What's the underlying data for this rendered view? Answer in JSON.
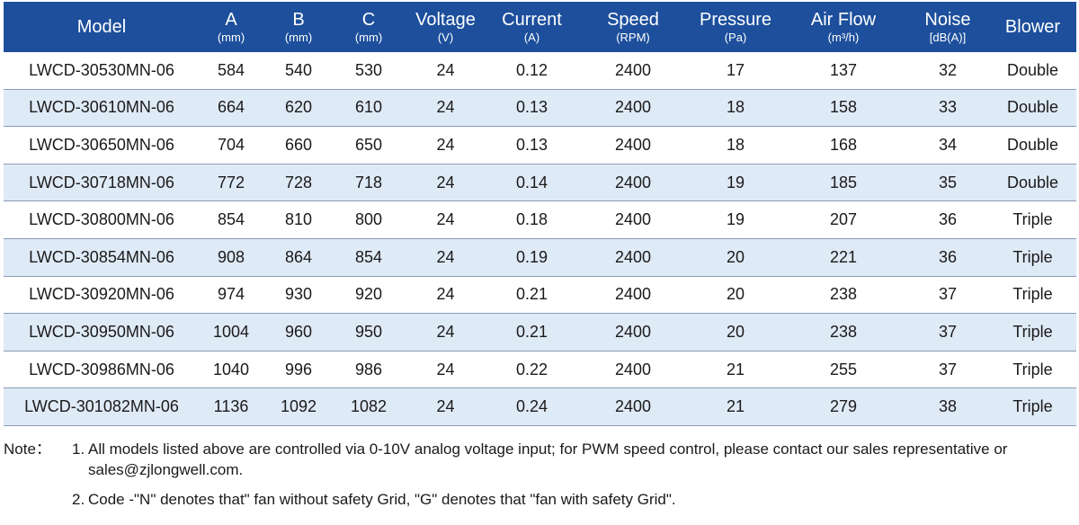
{
  "table": {
    "headers": [
      {
        "label": "Model",
        "unit": ""
      },
      {
        "label": "A",
        "unit": "(mm)"
      },
      {
        "label": "B",
        "unit": "(mm)"
      },
      {
        "label": "C",
        "unit": "(mm)"
      },
      {
        "label": "Voltage",
        "unit": "(V)"
      },
      {
        "label": "Current",
        "unit": "(A)"
      },
      {
        "label": "Speed",
        "unit": "(RPM)"
      },
      {
        "label": "Pressure",
        "unit": "(Pa)"
      },
      {
        "label": "Air Flow",
        "unit": "(m³/h)"
      },
      {
        "label": "Noise",
        "unit": "[dB(A)]"
      },
      {
        "label": "Blower",
        "unit": ""
      }
    ],
    "rows": [
      [
        "LWCD-30530MN-06",
        "584",
        "540",
        "530",
        "24",
        "0.12",
        "2400",
        "17",
        "137",
        "32",
        "Double"
      ],
      [
        "LWCD-30610MN-06",
        "664",
        "620",
        "610",
        "24",
        "0.13",
        "2400",
        "18",
        "158",
        "33",
        "Double"
      ],
      [
        "LWCD-30650MN-06",
        "704",
        "660",
        "650",
        "24",
        "0.13",
        "2400",
        "18",
        "168",
        "34",
        "Double"
      ],
      [
        "LWCD-30718MN-06",
        "772",
        "728",
        "718",
        "24",
        "0.14",
        "2400",
        "19",
        "185",
        "35",
        "Double"
      ],
      [
        "LWCD-30800MN-06",
        "854",
        "810",
        "800",
        "24",
        "0.18",
        "2400",
        "19",
        "207",
        "36",
        "Triple"
      ],
      [
        "LWCD-30854MN-06",
        "908",
        "864",
        "854",
        "24",
        "0.19",
        "2400",
        "20",
        "221",
        "36",
        "Triple"
      ],
      [
        "LWCD-30920MN-06",
        "974",
        "930",
        "920",
        "24",
        "0.21",
        "2400",
        "20",
        "238",
        "37",
        "Triple"
      ],
      [
        "LWCD-30950MN-06",
        "1004",
        "960",
        "950",
        "24",
        "0.21",
        "2400",
        "20",
        "238",
        "37",
        "Triple"
      ],
      [
        "LWCD-30986MN-06",
        "1040",
        "996",
        "986",
        "24",
        "0.22",
        "2400",
        "21",
        "255",
        "37",
        "Triple"
      ],
      [
        "LWCD-301082MN-06",
        "1136",
        "1092",
        "1082",
        "24",
        "0.24",
        "2400",
        "21",
        "279",
        "38",
        "Triple"
      ]
    ]
  },
  "notes": {
    "prefix": "Note：",
    "items": [
      {
        "num": "1.",
        "text": "All models listed above are controlled via 0-10V analog voltage input; for PWM speed control, please contact our sales representative or sales@zjlongwell.com."
      },
      {
        "num": "2.",
        "text": "Code -\"N\" denotes that\" fan without safety Grid, \"G\" denotes that \"fan with safety Grid\"."
      }
    ]
  },
  "colors": {
    "header_bg": "#1d4f9c",
    "header_text": "#ffffff",
    "stripe_bg": "#dfeaf7",
    "row_border": "#8a9bb5"
  }
}
